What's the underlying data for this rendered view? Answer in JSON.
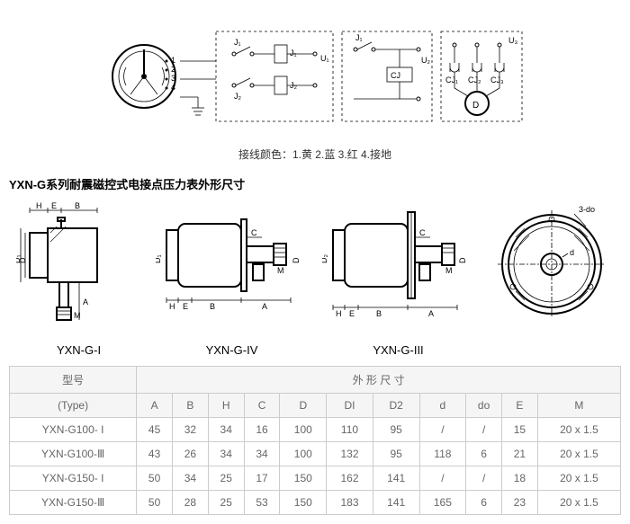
{
  "caption": "接线颜色：1.黄 2.蓝 3.红 4.接地",
  "section_title": "YXN-G系列耐震磁控式电接点压力表外形尺寸",
  "drawings": {
    "items": [
      {
        "label": "YXN-G-I"
      },
      {
        "label": "YXN-G-IV"
      },
      {
        "label": "YXN-G-III"
      }
    ],
    "face_label": "3-do"
  },
  "circuit": {
    "labels": {
      "J1": "J₁",
      "J2": "J₂",
      "J1a": "J₁",
      "J2a": "J₂",
      "J1b": "J₁",
      "U1": "U₁",
      "U2": "U₂",
      "U3": "U₃",
      "CJ": "CJ",
      "CJ1": "CJ₁",
      "CJ2": "CJ₂",
      "CJ3": "CJ₃",
      "D": "D"
    }
  },
  "table": {
    "headers": {
      "model": "型号",
      "model_en": "(Type)",
      "dims": "外 形 尺 寸",
      "cols": [
        "A",
        "B",
        "H",
        "C",
        "D",
        "DI",
        "D2",
        "d",
        "do",
        "E",
        "M"
      ]
    },
    "rows": [
      {
        "type": "YXN-G100- I",
        "vals": [
          "45",
          "32",
          "34",
          "16",
          "100",
          "110",
          "95",
          "/",
          "/",
          "15",
          "20 x 1.5"
        ]
      },
      {
        "type": "YXN-G100-Ⅲ",
        "vals": [
          "43",
          "26",
          "34",
          "34",
          "100",
          "132",
          "95",
          "118",
          "6",
          "21",
          "20 x 1.5"
        ]
      },
      {
        "type": "YXN-G150- I",
        "vals": [
          "50",
          "34",
          "25",
          "17",
          "150",
          "162",
          "141",
          "/",
          "/",
          "18",
          "20 x 1.5"
        ]
      },
      {
        "type": "YXN-G150-Ⅲ",
        "vals": [
          "50",
          "28",
          "25",
          "53",
          "150",
          "183",
          "141",
          "165",
          "6",
          "23",
          "20 x 1.5"
        ]
      }
    ]
  },
  "style": {
    "border_color": "#cccccc",
    "text_color": "#666666",
    "bg": "#ffffff",
    "header_bg": "#f5f5f5"
  }
}
